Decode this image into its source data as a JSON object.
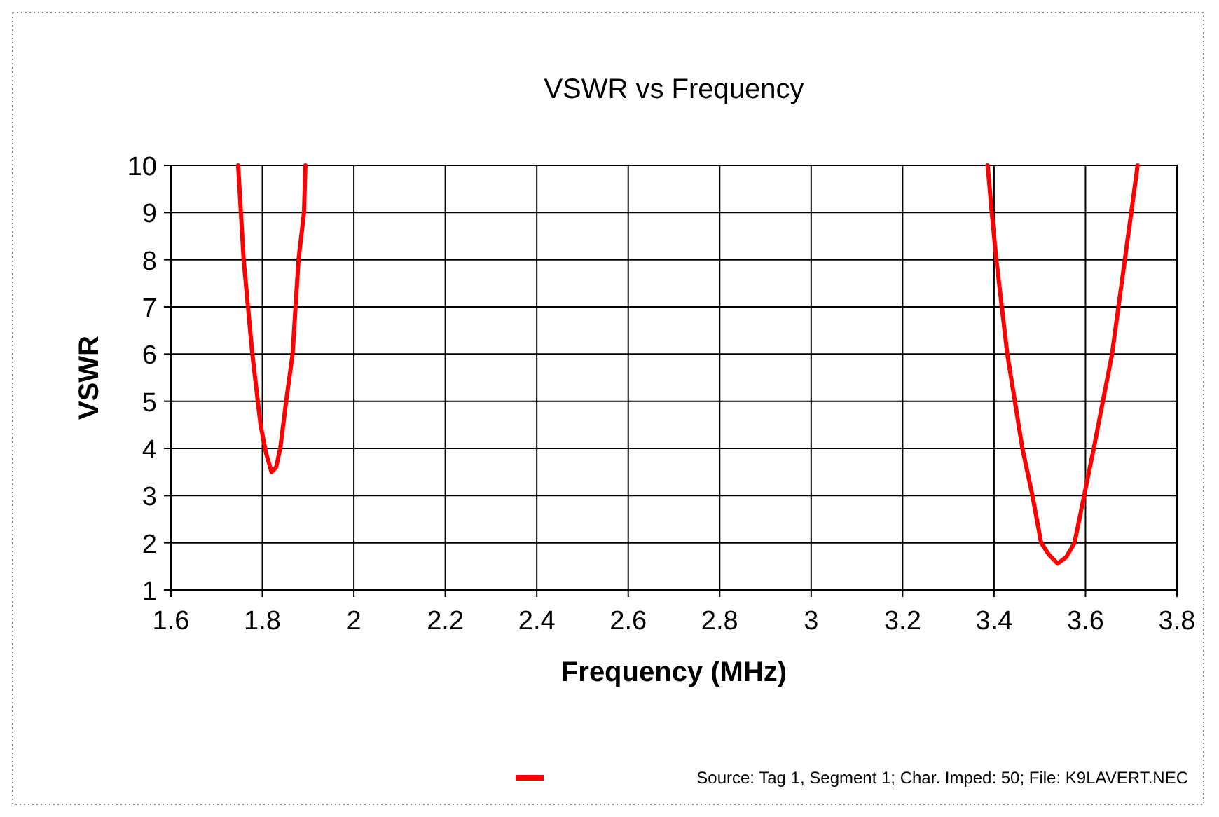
{
  "chart_data": {
    "type": "line",
    "title": "VSWR vs Frequency",
    "xlabel": "Frequency (MHz)",
    "ylabel": "VSWR",
    "x": [
      1.747,
      1.759,
      1.778,
      1.796,
      1.808,
      1.82,
      1.83,
      1.839,
      1.852,
      1.866,
      1.879,
      1.891,
      1.894,
      2.6,
      3.386,
      3.395,
      3.405,
      3.429,
      3.462,
      3.484,
      3.503,
      3.52,
      3.539,
      3.558,
      3.576,
      3.597,
      3.618,
      3.658,
      3.686,
      3.7,
      3.714
    ],
    "series": [
      {
        "name": "Source: Tag 1, Segment 1; Char. Imped: 50; File: K9LAVERT.NEC",
        "color": "#ff0000",
        "values": [
          10,
          8,
          6,
          4.5,
          3.9,
          3.5,
          3.6,
          4,
          5,
          6,
          8,
          9,
          10,
          null,
          10,
          9,
          8,
          6,
          4,
          3,
          2,
          1.75,
          1.56,
          1.7,
          2,
          3,
          4,
          6,
          8,
          9,
          10
        ]
      }
    ],
    "xlim": [
      1.6,
      3.8
    ],
    "xticks": [
      1.6,
      1.8,
      2,
      2.2,
      2.4,
      2.6,
      2.8,
      3,
      3.2,
      3.4,
      3.6,
      3.8
    ],
    "ylim": [
      1,
      10
    ],
    "yticks": [
      1,
      2,
      3,
      4,
      5,
      6,
      7,
      8,
      9,
      10
    ],
    "grid": true,
    "legend": "bottom right",
    "marker": "none",
    "line_style": "solid"
  }
}
